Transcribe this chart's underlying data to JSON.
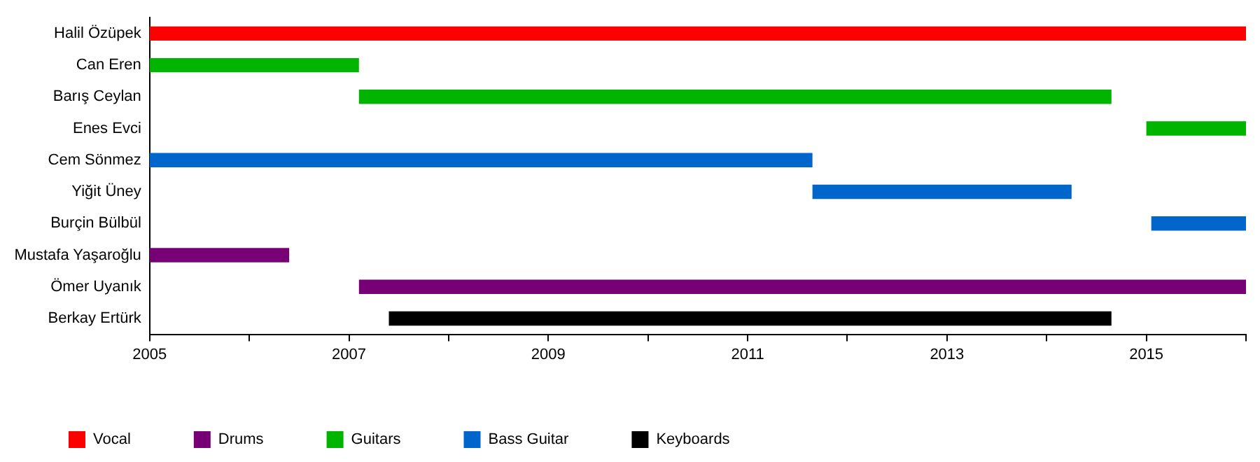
{
  "chart_data": {
    "type": "bar",
    "orientation": "horizontal",
    "categories": [
      "Halil Özüpek",
      "Can Eren",
      "Barış Ceylan",
      "Enes Evci",
      "Cem Sönmez",
      "Yiğit Üney",
      "Burçin Bülbül",
      "Mustafa Yaşaroğlu",
      "Ömer Uyanık",
      "Berkay Ertürk"
    ],
    "series": [
      {
        "name": "Vocal",
        "color": "#ff0000",
        "values": [
          11,
          null,
          null,
          null,
          null,
          null,
          null,
          null,
          null,
          null
        ],
        "base": [
          2005,
          null,
          null,
          null,
          null,
          null,
          null,
          null,
          null,
          null
        ]
      },
      {
        "name": "Drums",
        "color": "#770077",
        "values": [
          null,
          null,
          null,
          null,
          null,
          null,
          null,
          1.4,
          8.9,
          null
        ],
        "base": [
          null,
          null,
          null,
          null,
          null,
          null,
          null,
          2005,
          2007.1,
          null
        ]
      },
      {
        "name": "Guitars",
        "color": "#00b400",
        "values": [
          null,
          2.1,
          7.55,
          1,
          null,
          null,
          null,
          null,
          null,
          null
        ],
        "base": [
          null,
          2005,
          2007.1,
          2015,
          null,
          null,
          null,
          null,
          null,
          null
        ]
      },
      {
        "name": "Bass Guitar",
        "color": "#0066cc",
        "values": [
          null,
          null,
          null,
          null,
          6.65,
          2.6,
          0.95,
          null,
          null,
          null
        ],
        "base": [
          null,
          null,
          null,
          null,
          2005,
          2011.65,
          2015.05,
          null,
          null,
          null
        ]
      },
      {
        "name": "Keyboards",
        "color": "#000000",
        "values": [
          null,
          null,
          null,
          null,
          null,
          null,
          null,
          null,
          null,
          7.25
        ],
        "base": [
          null,
          null,
          null,
          null,
          null,
          null,
          null,
          null,
          null,
          2007.4
        ]
      }
    ],
    "xlim": [
      2005,
      2016
    ],
    "xticks": [
      2005,
      {
        "value": 2006,
        "label": null
      },
      2007,
      {
        "value": 2008,
        "label": null
      },
      2009,
      {
        "value": 2010,
        "label": null
      },
      2011,
      {
        "value": 2012,
        "label": null
      },
      2013,
      {
        "value": 2014,
        "label": null
      },
      2015,
      {
        "value": 2016,
        "label": null
      }
    ],
    "grid": false,
    "legend": "bottom"
  }
}
